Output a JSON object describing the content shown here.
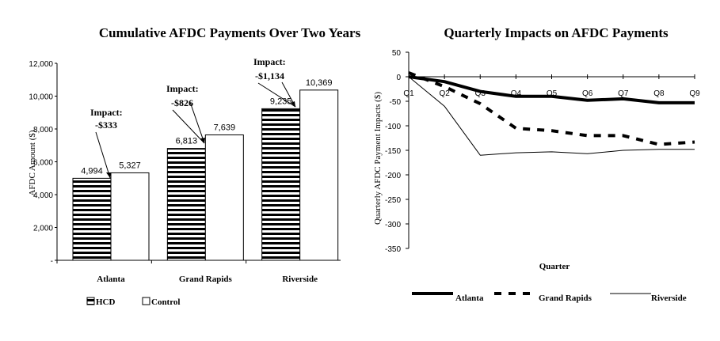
{
  "chart_data": [
    {
      "type": "bar",
      "title": "Cumulative AFDC Payments Over Two Years",
      "xlabel": "",
      "ylabel": "AFDC Amount ($)",
      "ylim": [
        0,
        12000
      ],
      "yticks": [
        "-",
        "2,000",
        "4,000",
        "6,000",
        "8,000",
        "10,000",
        "12,000"
      ],
      "categories": [
        "Atlanta",
        "Grand Rapids",
        "Riverside"
      ],
      "series": [
        {
          "name": "HCD",
          "values": [
            4994,
            6813,
            9235
          ],
          "labels": [
            "4,994",
            "6,813",
            "9,235"
          ],
          "pattern": "horizontal-stripes"
        },
        {
          "name": "Control",
          "values": [
            5327,
            7639,
            10369
          ],
          "labels": [
            "5,327",
            "7,639",
            "10,369"
          ],
          "pattern": "white"
        }
      ],
      "annotations": [
        {
          "line1": "Impact:",
          "line2": "-$333"
        },
        {
          "line1": "Impact:",
          "line2": "-$826"
        },
        {
          "line1": "Impact:",
          "line2": "-$1,134"
        }
      ],
      "legend": {
        "position": "bottom-left",
        "items": [
          "HCD",
          "Control"
        ]
      }
    },
    {
      "type": "line",
      "title": "Quarterly Impacts on AFDC Payments",
      "xlabel": "Quarter",
      "ylabel": "Quarterly AFDC Payment Impacts ($)",
      "ylim": [
        -350,
        50
      ],
      "yticks": [
        "50",
        "0",
        "-50",
        "-100",
        "-150",
        "-200",
        "-250",
        "-300",
        "-350"
      ],
      "x": [
        "Q1",
        "Q2",
        "Q3",
        "Q4",
        "Q5",
        "Q6",
        "Q7",
        "Q8",
        "Q9"
      ],
      "series": [
        {
          "name": "Atlanta",
          "values": [
            0,
            -10,
            -30,
            -40,
            -40,
            -48,
            -45,
            -53,
            -53
          ],
          "style": "thick"
        },
        {
          "name": "Grand Rapids",
          "values": [
            8,
            -20,
            -55,
            -105,
            -110,
            -120,
            -120,
            -138,
            -133
          ],
          "style": "dashed"
        },
        {
          "name": "Riverside",
          "values": [
            0,
            -60,
            -160,
            -155,
            -153,
            -157,
            -150,
            -148,
            -148
          ],
          "style": "thin"
        }
      ],
      "legend": {
        "position": "bottom",
        "items": [
          "Atlanta",
          "Grand Rapids",
          "Riverside"
        ]
      }
    }
  ]
}
